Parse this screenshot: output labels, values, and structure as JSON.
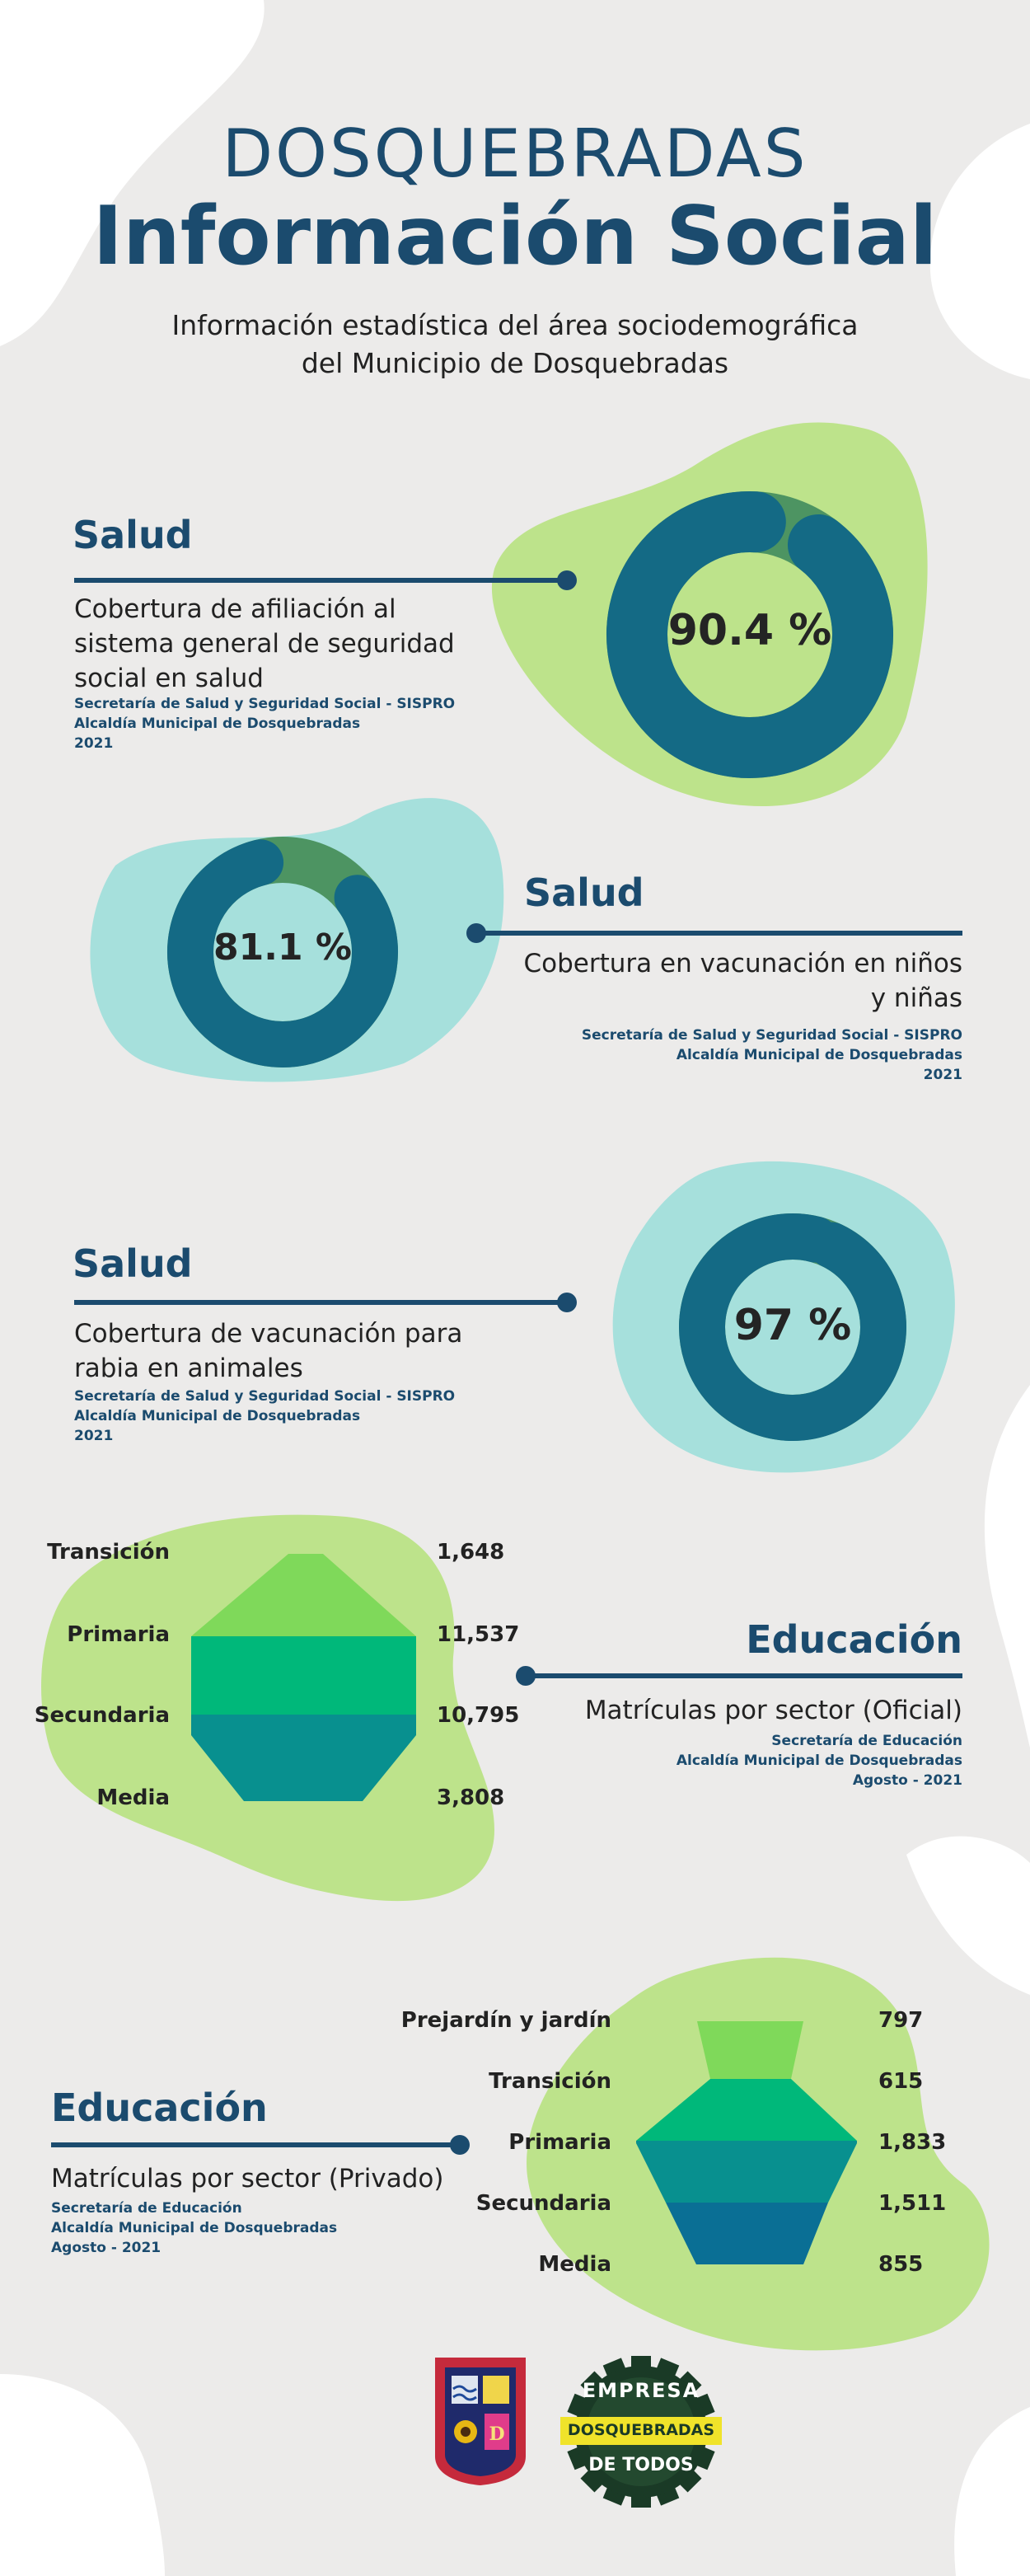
{
  "header": {
    "title_line1": "DOSQUEBRADAS",
    "title_line2": "Información Social",
    "subtitle_line1": "Información estadística del área sociodemográfica",
    "subtitle_line2": "del Municipio de Dosquebradas"
  },
  "sections": [
    {
      "title": "Salud",
      "description": [
        "Cobertura de afiliación al",
        "sistema general de seguridad",
        "social en salud"
      ],
      "source": [
        "Secretaría de Salud y Seguridad Social - SISPRO",
        "Alcaldía Municipal de Dosquebradas",
        "2021"
      ],
      "value_label": "90.4 %",
      "value": 90.4
    },
    {
      "title": "Salud",
      "description": [
        "Cobertura en vacunación en niños",
        "y niñas"
      ],
      "source": [
        "Secretaría de Salud y Seguridad Social - SISPRO",
        "Alcaldía Municipal de Dosquebradas",
        "2021"
      ],
      "value_label": "81.1 %",
      "value": 81.1
    },
    {
      "title": "Salud",
      "description": [
        "Cobertura de vacunación para",
        "rabia en animales"
      ],
      "source": [
        "Secretaría de Salud y Seguridad Social - SISPRO",
        "Alcaldía Municipal de Dosquebradas",
        "2021"
      ],
      "value_label": "97 %",
      "value": 97
    },
    {
      "title": "Educación",
      "description": [
        "Matrículas por sector (Oficial)"
      ],
      "source": [
        "Secretaría de Educación",
        "Alcaldía Municipal de Dosquebradas",
        "Agosto - 2021"
      ],
      "rows": [
        {
          "label": "Transición",
          "value": "1,648"
        },
        {
          "label": "Primaria",
          "value": "11,537"
        },
        {
          "label": "Secundaria",
          "value": "10,795"
        },
        {
          "label": "Media",
          "value": "3,808"
        }
      ]
    },
    {
      "title": "Educación",
      "description": [
        "Matrículas por sector (Privado)"
      ],
      "source": [
        "Secretaría de Educación",
        "Alcaldía Municipal de Dosquebradas",
        "Agosto - 2021"
      ],
      "rows": [
        {
          "label": "Prejardín y jardín",
          "value": "797"
        },
        {
          "label": "Transición",
          "value": "615"
        },
        {
          "label": "Primaria",
          "value": "1,833"
        },
        {
          "label": "Secundaria",
          "value": "1,511"
        },
        {
          "label": "Media",
          "value": "855"
        }
      ]
    }
  ],
  "footer": {
    "logo2_text_top": "EMPRESA",
    "logo2_text_band": "DOSQUEBRADAS",
    "logo2_text_bottom": "DE TODOS"
  },
  "colors": {
    "navy": "#1b4b6e",
    "donut_teal": "#146a85",
    "donut_green": "#4d9462",
    "blob_lime": "#bde38b",
    "blob_aqua": "#a6e0dc",
    "background": "#ecebea"
  }
}
